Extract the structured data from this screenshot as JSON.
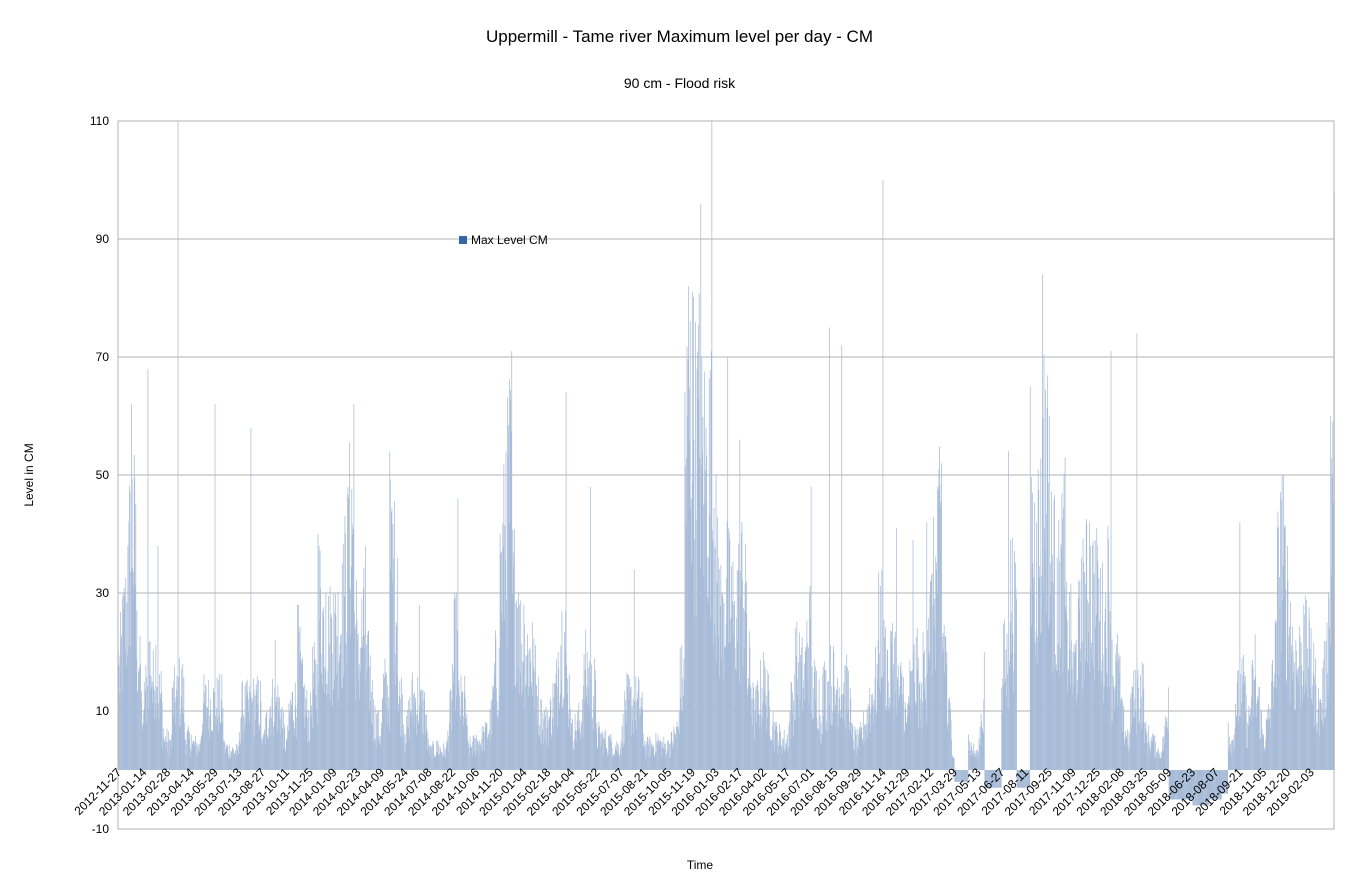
{
  "chart_data": {
    "type": "bar",
    "title": "Uppermill - Tame river Maximum level per day  - CM",
    "subtitle": "90 cm - Flood risk",
    "xlabel": "Time",
    "ylabel": "Level in CM",
    "ylim": [
      -10,
      110
    ],
    "yticks": [
      -10,
      10,
      30,
      50,
      70,
      90,
      110
    ],
    "grid": true,
    "legend_position": "inside-top-left",
    "series": [
      {
        "name": "Max Level CM",
        "color": "#3465a4",
        "fill": "#a8bcd8"
      }
    ],
    "x_start": "2012-11-27",
    "x_end": "2019-03-19",
    "x_tick_labels": [
      "2012-11-27",
      "2013-01-14",
      "2013-02-28",
      "2013-04-14",
      "2013-05-29",
      "2013-07-13",
      "2013-08-27",
      "2013-10-11",
      "2013-11-25",
      "2014-01-09",
      "2014-02-23",
      "2014-04-09",
      "2014-05-24",
      "2014-07-08",
      "2014-08-22",
      "2014-10-06",
      "2014-11-20",
      "2015-01-04",
      "2015-02-18",
      "2015-04-04",
      "2015-05-22",
      "2015-07-07",
      "2015-08-21",
      "2015-10-05",
      "2015-11-19",
      "2016-01-03",
      "2016-02-17",
      "2016-04-02",
      "2016-05-17",
      "2016-07-01",
      "2016-08-15",
      "2016-09-29",
      "2016-11-14",
      "2016-12-29",
      "2017-02-12",
      "2017-03-29",
      "2017-05-13",
      "2017-06-27",
      "2017-08-11",
      "2017-09-25",
      "2017-11-09",
      "2017-12-25",
      "2018-02-08",
      "2018-03-25",
      "2018-05-09",
      "2018-06-23",
      "2018-08-07",
      "2018-09-21",
      "2018-11-05",
      "2018-12-20",
      "2019-02-03"
    ],
    "level_profile": [
      [
        "2012-11-27",
        20
      ],
      [
        "2012-12-06",
        30
      ],
      [
        "2012-12-15",
        38
      ],
      [
        "2012-12-22",
        62
      ],
      [
        "2012-12-30",
        45
      ],
      [
        "2013-01-08",
        18
      ],
      [
        "2013-01-14",
        8
      ],
      [
        "2013-01-22",
        68
      ],
      [
        "2013-01-30",
        15
      ],
      [
        "2013-02-10",
        38
      ],
      [
        "2013-02-20",
        7
      ],
      [
        "2013-03-08",
        6
      ],
      [
        "2013-03-20",
        110
      ],
      [
        "2013-04-01",
        8
      ],
      [
        "2013-04-14",
        6
      ],
      [
        "2013-05-01",
        5
      ],
      [
        "2013-05-29",
        62
      ],
      [
        "2013-06-15",
        5
      ],
      [
        "2013-07-13",
        4
      ],
      [
        "2013-08-05",
        58
      ],
      [
        "2013-08-27",
        5
      ],
      [
        "2013-09-20",
        22
      ],
      [
        "2013-10-11",
        5
      ],
      [
        "2013-11-01",
        28
      ],
      [
        "2013-11-10",
        18
      ],
      [
        "2013-11-25",
        10
      ],
      [
        "2013-12-10",
        40
      ],
      [
        "2013-12-25",
        30
      ],
      [
        "2014-01-09",
        30
      ],
      [
        "2014-01-25",
        35
      ],
      [
        "2014-02-05",
        48
      ],
      [
        "2014-02-16",
        62
      ],
      [
        "2014-02-23",
        22
      ],
      [
        "2014-03-10",
        38
      ],
      [
        "2014-03-25",
        12
      ],
      [
        "2014-04-09",
        8
      ],
      [
        "2014-04-25",
        54
      ],
      [
        "2014-05-10",
        36
      ],
      [
        "2014-05-24",
        6
      ],
      [
        "2014-06-20",
        28
      ],
      [
        "2014-07-08",
        4
      ],
      [
        "2014-07-25",
        5
      ],
      [
        "2014-08-10",
        4
      ],
      [
        "2014-08-22",
        18
      ],
      [
        "2014-09-01",
        46
      ],
      [
        "2014-09-20",
        5
      ],
      [
        "2014-10-06",
        6
      ],
      [
        "2014-10-25",
        8
      ],
      [
        "2014-11-05",
        12
      ],
      [
        "2014-11-20",
        40
      ],
      [
        "2014-12-01",
        54
      ],
      [
        "2014-12-12",
        71
      ],
      [
        "2014-12-25",
        30
      ],
      [
        "2015-01-04",
        28
      ],
      [
        "2015-01-20",
        25
      ],
      [
        "2015-02-05",
        12
      ],
      [
        "2015-02-18",
        10
      ],
      [
        "2015-03-10",
        20
      ],
      [
        "2015-03-25",
        64
      ],
      [
        "2015-04-04",
        8
      ],
      [
        "2015-04-25",
        12
      ],
      [
        "2015-05-10",
        48
      ],
      [
        "2015-05-22",
        8
      ],
      [
        "2015-06-15",
        6
      ],
      [
        "2015-07-07",
        5
      ],
      [
        "2015-08-01",
        34
      ],
      [
        "2015-08-21",
        5
      ],
      [
        "2015-09-15",
        6
      ],
      [
        "2015-10-05",
        5
      ],
      [
        "2015-10-25",
        10
      ],
      [
        "2015-11-05",
        64
      ],
      [
        "2015-11-12",
        82
      ],
      [
        "2015-11-19",
        81
      ],
      [
        "2015-11-28",
        68
      ],
      [
        "2015-12-05",
        96
      ],
      [
        "2015-12-15",
        58
      ],
      [
        "2015-12-26",
        110
      ],
      [
        "2016-01-03",
        50
      ],
      [
        "2016-01-15",
        30
      ],
      [
        "2016-01-25",
        70
      ],
      [
        "2016-02-06",
        28
      ],
      [
        "2016-02-17",
        56
      ],
      [
        "2016-03-01",
        32
      ],
      [
        "2016-03-15",
        12
      ],
      [
        "2016-04-02",
        20
      ],
      [
        "2016-04-25",
        8
      ],
      [
        "2016-05-17",
        6
      ],
      [
        "2016-06-01",
        24
      ],
      [
        "2016-06-20",
        20
      ],
      [
        "2016-07-01",
        48
      ],
      [
        "2016-07-20",
        8
      ],
      [
        "2016-08-05",
        75
      ],
      [
        "2016-08-15",
        10
      ],
      [
        "2016-08-28",
        72
      ],
      [
        "2016-09-15",
        8
      ],
      [
        "2016-09-29",
        6
      ],
      [
        "2016-10-20",
        14
      ],
      [
        "2016-11-05",
        22
      ],
      [
        "2016-11-14",
        100
      ],
      [
        "2016-11-24",
        15
      ],
      [
        "2016-12-10",
        41
      ],
      [
        "2016-12-29",
        8
      ],
      [
        "2017-01-10",
        39
      ],
      [
        "2017-01-25",
        12
      ],
      [
        "2017-02-05",
        42
      ],
      [
        "2017-02-12",
        32
      ],
      [
        "2017-02-25",
        48
      ],
      [
        "2017-03-05",
        52
      ],
      [
        "2017-03-15",
        20
      ],
      [
        "2017-03-29",
        2
      ],
      [
        "2017-04-10",
        -2
      ],
      [
        "2017-04-25",
        6
      ],
      [
        "2017-05-13",
        3
      ],
      [
        "2017-05-25",
        20
      ],
      [
        "2017-06-10",
        -3
      ],
      [
        "2017-06-27",
        14
      ],
      [
        "2017-07-10",
        54
      ],
      [
        "2017-07-25",
        29
      ],
      [
        "2017-08-11",
        -3
      ],
      [
        "2017-08-20",
        65
      ],
      [
        "2017-09-01",
        42
      ],
      [
        "2017-09-12",
        84
      ],
      [
        "2017-09-25",
        60
      ],
      [
        "2017-10-10",
        36
      ],
      [
        "2017-10-25",
        53
      ],
      [
        "2017-11-09",
        20
      ],
      [
        "2017-11-25",
        36
      ],
      [
        "2017-12-10",
        42
      ],
      [
        "2017-12-25",
        38
      ],
      [
        "2018-01-10",
        30
      ],
      [
        "2018-01-20",
        71
      ],
      [
        "2018-02-08",
        12
      ],
      [
        "2018-02-25",
        6
      ],
      [
        "2018-03-10",
        74
      ],
      [
        "2018-03-25",
        8
      ],
      [
        "2018-04-10",
        6
      ],
      [
        "2018-04-25",
        3
      ],
      [
        "2018-05-09",
        14
      ],
      [
        "2018-05-20",
        -5
      ],
      [
        "2018-06-05",
        -5
      ],
      [
        "2018-06-23",
        -5
      ],
      [
        "2018-07-10",
        -6
      ],
      [
        "2018-07-25",
        -5
      ],
      [
        "2018-08-07",
        -5
      ],
      [
        "2018-08-18",
        -4
      ],
      [
        "2018-08-30",
        8
      ],
      [
        "2018-09-10",
        6
      ],
      [
        "2018-09-21",
        42
      ],
      [
        "2018-10-05",
        8
      ],
      [
        "2018-10-20",
        23
      ],
      [
        "2018-11-05",
        6
      ],
      [
        "2018-11-20",
        15
      ],
      [
        "2018-12-01",
        41
      ],
      [
        "2018-12-10",
        50
      ],
      [
        "2018-12-20",
        38
      ],
      [
        "2019-01-05",
        22
      ],
      [
        "2019-01-20",
        28
      ],
      [
        "2019-02-03",
        24
      ],
      [
        "2019-02-20",
        12
      ],
      [
        "2019-03-05",
        25
      ],
      [
        "2019-03-12",
        60
      ],
      [
        "2019-03-19",
        98
      ]
    ]
  }
}
